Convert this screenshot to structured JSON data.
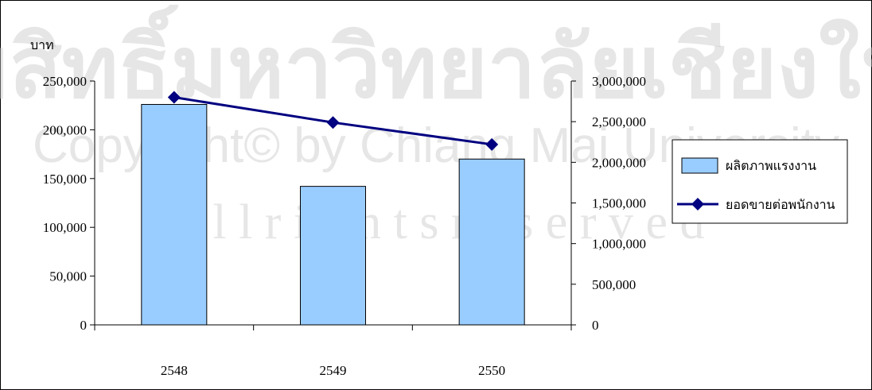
{
  "watermark": {
    "line1": "ลิขสิทธิ์มหาวิทยาลัยเชียงใหม่",
    "line2": "Copyright© by Chiang Mai University",
    "line3": "A l l r i g h t s r e s e r v e d"
  },
  "chart_data": {
    "type": "bar",
    "ylabel": "บาท",
    "categories": [
      "2548",
      "2549",
      "2550"
    ],
    "y_left": {
      "ylim": [
        0,
        250000
      ],
      "ticks": [
        0,
        50000,
        100000,
        150000,
        200000,
        250000
      ],
      "tick_labels": [
        "0",
        "50,000",
        "100,000",
        "150,000",
        "200,000",
        "250,000"
      ]
    },
    "y_right": {
      "ylim": [
        0,
        3000000
      ],
      "ticks": [
        0,
        500000,
        1000000,
        1500000,
        2000000,
        2500000,
        3000000
      ],
      "tick_labels": [
        "0",
        "500,000",
        "1,000,000",
        "1,500,000",
        "2,000,000",
        "2,500,000",
        "3,000,000"
      ]
    },
    "series": [
      {
        "name": "ผลิตภาพแรงงาน",
        "kind": "bar",
        "axis": "left",
        "values": [
          226000,
          142000,
          170000
        ],
        "color": "#99CCFF"
      },
      {
        "name": "ยอดขายต่อพนักงาน",
        "kind": "line",
        "axis": "right",
        "values": [
          2800000,
          2490000,
          2220000
        ],
        "color": "#000080"
      }
    ],
    "grid": false,
    "legend": "right"
  }
}
